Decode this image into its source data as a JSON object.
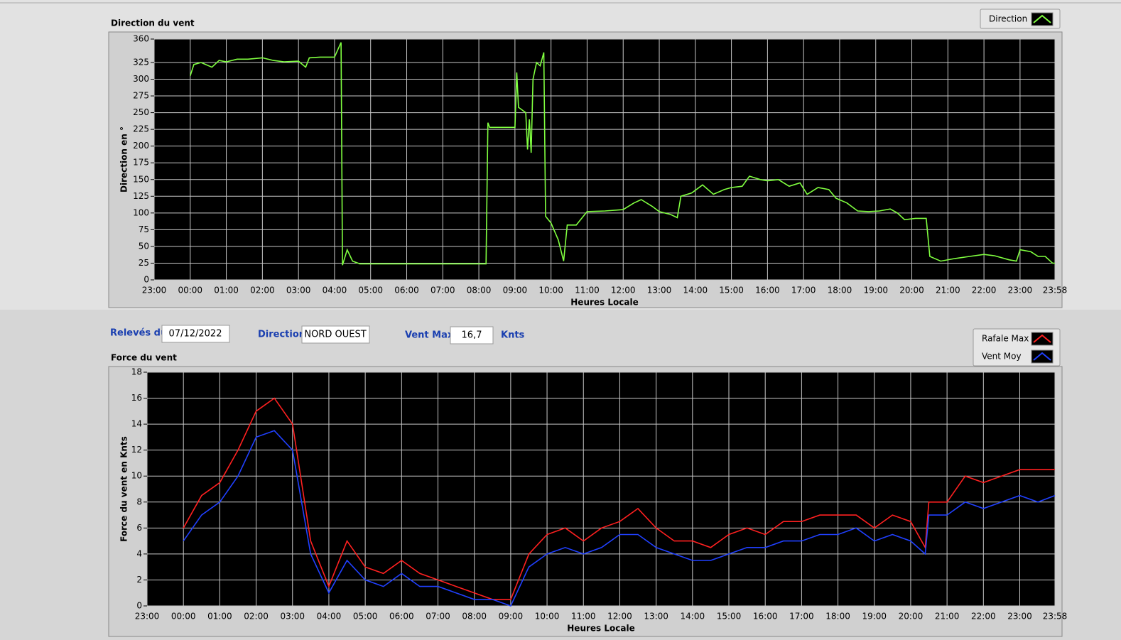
{
  "chart_data": [
    {
      "type": "line",
      "title": "Direction du vent",
      "ylabel": "Direction en °",
      "xlabel": "Heures Locale",
      "grid": true,
      "xlim": [
        -1,
        23.967
      ],
      "xticks": [
        {
          "value": -1,
          "label": "23:00"
        },
        {
          "value": 0,
          "label": "00:00"
        },
        {
          "value": 1,
          "label": "01:00"
        },
        {
          "value": 2,
          "label": "02:00"
        },
        {
          "value": 3,
          "label": "03:00"
        },
        {
          "value": 4,
          "label": "04:00"
        },
        {
          "value": 5,
          "label": "05:00"
        },
        {
          "value": 6,
          "label": "06:00"
        },
        {
          "value": 7,
          "label": "07:00"
        },
        {
          "value": 8,
          "label": "08:00"
        },
        {
          "value": 9,
          "label": "09:00"
        },
        {
          "value": 10,
          "label": "10:00"
        },
        {
          "value": 11,
          "label": "11:00"
        },
        {
          "value": 12,
          "label": "12:00"
        },
        {
          "value": 13,
          "label": "13:00"
        },
        {
          "value": 14,
          "label": "14:00"
        },
        {
          "value": 15,
          "label": "15:00"
        },
        {
          "value": 16,
          "label": "16:00"
        },
        {
          "value": 17,
          "label": "17:00"
        },
        {
          "value": 18,
          "label": "18:00"
        },
        {
          "value": 19,
          "label": "19:00"
        },
        {
          "value": 20,
          "label": "20:00"
        },
        {
          "value": 21,
          "label": "21:00"
        },
        {
          "value": 22,
          "label": "22:00"
        },
        {
          "value": 23,
          "label": "23:00"
        },
        {
          "value": 23.967,
          "label": "23:58"
        }
      ],
      "ylim": [
        0,
        360
      ],
      "yticks": [
        0,
        25,
        50,
        75,
        100,
        125,
        150,
        175,
        200,
        225,
        250,
        275,
        300,
        325,
        360
      ],
      "x": [
        0.0,
        0.1,
        0.3,
        0.6,
        0.8,
        1.0,
        1.3,
        1.6,
        2.0,
        2.3,
        2.6,
        3.0,
        3.2,
        3.3,
        3.6,
        4.0,
        4.18,
        4.22,
        4.35,
        4.5,
        4.7,
        5.5,
        6.5,
        7.5,
        8.2,
        8.25,
        8.3,
        8.6,
        9.0,
        9.05,
        9.1,
        9.3,
        9.35,
        9.4,
        9.45,
        9.5,
        9.6,
        9.7,
        9.8,
        9.85,
        10.0,
        10.2,
        10.35,
        10.45,
        10.7,
        11.0,
        11.5,
        12.0,
        12.3,
        12.5,
        12.8,
        13.0,
        13.3,
        13.5,
        13.6,
        13.9,
        14.2,
        14.5,
        14.8,
        15.0,
        15.3,
        15.5,
        15.8,
        16.0,
        16.3,
        16.6,
        16.9,
        17.1,
        17.4,
        17.7,
        17.9,
        18.2,
        18.5,
        18.8,
        19.1,
        19.4,
        19.6,
        19.8,
        20.1,
        20.4,
        20.5,
        20.8,
        21.2,
        21.6,
        22.0,
        22.3,
        22.7,
        22.9,
        23.0,
        23.3,
        23.5,
        23.7,
        23.9,
        23.967
      ],
      "series": [
        {
          "name": "Direction",
          "color": "#80ff40",
          "values": [
            305,
            322,
            325,
            318,
            328,
            326,
            330,
            330,
            332,
            328,
            326,
            327,
            318,
            332,
            333,
            333,
            355,
            22,
            45,
            28,
            24,
            24,
            24,
            24,
            24,
            235,
            228,
            228,
            228,
            310,
            258,
            250,
            195,
            240,
            190,
            300,
            325,
            320,
            340,
            95,
            85,
            60,
            28,
            82,
            82,
            102,
            103,
            105,
            115,
            120,
            110,
            102,
            98,
            93,
            125,
            130,
            142,
            128,
            135,
            138,
            140,
            155,
            150,
            148,
            150,
            140,
            145,
            128,
            138,
            135,
            122,
            115,
            103,
            102,
            103,
            106,
            100,
            90,
            92,
            92,
            35,
            28,
            32,
            35,
            38,
            36,
            30,
            28,
            45,
            42,
            35,
            35,
            25,
            25
          ]
        }
      ]
    },
    {
      "type": "line",
      "title": "Force du vent",
      "ylabel": "Force du vent en Knts",
      "xlabel": "Heures Locale",
      "grid": true,
      "xlim": [
        -1,
        23.967
      ],
      "xticks": [
        {
          "value": -1,
          "label": "23:00"
        },
        {
          "value": 0,
          "label": "00:00"
        },
        {
          "value": 1,
          "label": "01:00"
        },
        {
          "value": 2,
          "label": "02:00"
        },
        {
          "value": 3,
          "label": "03:00"
        },
        {
          "value": 4,
          "label": "04:00"
        },
        {
          "value": 5,
          "label": "05:00"
        },
        {
          "value": 6,
          "label": "06:00"
        },
        {
          "value": 7,
          "label": "07:00"
        },
        {
          "value": 8,
          "label": "08:00"
        },
        {
          "value": 9,
          "label": "09:00"
        },
        {
          "value": 10,
          "label": "10:00"
        },
        {
          "value": 11,
          "label": "11:00"
        },
        {
          "value": 12,
          "label": "12:00"
        },
        {
          "value": 13,
          "label": "13:00"
        },
        {
          "value": 14,
          "label": "14:00"
        },
        {
          "value": 15,
          "label": "15:00"
        },
        {
          "value": 16,
          "label": "16:00"
        },
        {
          "value": 17,
          "label": "17:00"
        },
        {
          "value": 18,
          "label": "18:00"
        },
        {
          "value": 19,
          "label": "19:00"
        },
        {
          "value": 20,
          "label": "20:00"
        },
        {
          "value": 21,
          "label": "21:00"
        },
        {
          "value": 22,
          "label": "22:00"
        },
        {
          "value": 23,
          "label": "23:00"
        },
        {
          "value": 23.967,
          "label": "23:58"
        }
      ],
      "ylim": [
        0,
        18
      ],
      "yticks": [
        0,
        2,
        4,
        6,
        8,
        10,
        12,
        14,
        16,
        18
      ],
      "x": [
        0,
        0.5,
        1.0,
        1.5,
        2.0,
        2.5,
        3.0,
        3.5,
        4.0,
        4.5,
        5.0,
        5.5,
        6.0,
        6.5,
        7.0,
        7.5,
        8.0,
        8.5,
        9.0,
        9.5,
        10.0,
        10.5,
        11.0,
        11.5,
        12.0,
        12.5,
        13.0,
        13.5,
        14.0,
        14.5,
        15.0,
        15.5,
        16.0,
        16.5,
        17.0,
        17.5,
        18.0,
        18.5,
        19.0,
        19.5,
        20.0,
        20.4,
        20.5,
        21.0,
        21.5,
        22.0,
        22.5,
        23.0,
        23.5,
        23.967
      ],
      "series": [
        {
          "name": "Rafale Max",
          "color": "#ff2020",
          "values": [
            6,
            8.5,
            9.5,
            12,
            15,
            16,
            14,
            5,
            1.5,
            5,
            3,
            2.5,
            3.5,
            2.5,
            2,
            1.5,
            1,
            0.5,
            0.5,
            4,
            5.5,
            6,
            5,
            6,
            6.5,
            7.5,
            6,
            5,
            5,
            4.5,
            5.5,
            6,
            5.5,
            6.5,
            6.5,
            7,
            7,
            7,
            6,
            7,
            6.5,
            4.5,
            8,
            8,
            10,
            9.5,
            10,
            10.5,
            10.5,
            10.5
          ]
        },
        {
          "name": "Vent Moy",
          "color": "#2040ff",
          "values": [
            5,
            7,
            8,
            10,
            13,
            13.5,
            12,
            4,
            1,
            3.5,
            2,
            1.5,
            2.5,
            1.5,
            1.5,
            1,
            0.5,
            0.5,
            0,
            3,
            4,
            4.5,
            4,
            4.5,
            5.5,
            5.5,
            4.5,
            4,
            3.5,
            3.5,
            4,
            4.5,
            4.5,
            5,
            5,
            5.5,
            5.5,
            6,
            5,
            5.5,
            5,
            4,
            7,
            7,
            8,
            7.5,
            8,
            8.5,
            8,
            8.5
          ]
        }
      ]
    }
  ],
  "fields": {
    "date": {
      "label": "Relevés du",
      "value": "07/12/2022"
    },
    "direction": {
      "label": "Direction",
      "value": "NORD OUEST"
    },
    "vent_max": {
      "label": "Vent Max",
      "value": "16,7",
      "unit": "Knts"
    }
  }
}
